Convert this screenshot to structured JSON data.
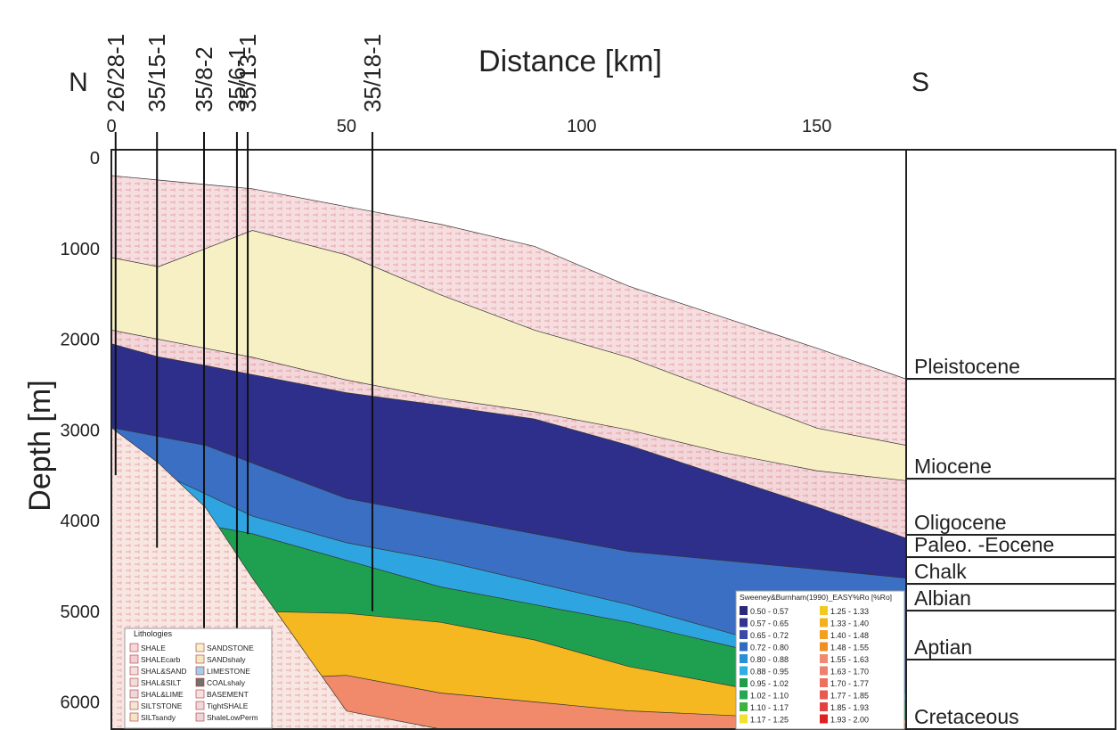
{
  "chart_data": {
    "type": "section",
    "title": "Distance [km]",
    "ylabel": "Depth [m]",
    "left_label": "N",
    "right_label": "S",
    "xlim": [
      0,
      169
    ],
    "xticks": [
      0,
      50,
      100,
      150
    ],
    "ylim": [
      6300,
      -90
    ],
    "yticks": [
      0,
      1000,
      2000,
      3000,
      4000,
      5000,
      6000
    ],
    "wells": [
      {
        "name": "26/28-1",
        "x": 0.9,
        "td": 3500
      },
      {
        "name": "35/15-1",
        "x": 9.7,
        "td": 4300
      },
      {
        "name": "35/8-2",
        "x": 19.7,
        "td": 5200
      },
      {
        "name": "35/6-1",
        "x": 26.7,
        "td": 5200
      },
      {
        "name": "35/13-1",
        "x": 29.0,
        "td": 4150
      },
      {
        "name": "35/18-1",
        "x": 55.5,
        "td": 5000
      }
    ],
    "layer_x": [
      0,
      10,
      20,
      30,
      50,
      70,
      90,
      110,
      130,
      150,
      169
    ],
    "layers": [
      {
        "color": "#f6dde0",
        "hatch": true,
        "top": [
          195,
          244,
          293,
          341,
          537,
          732,
          976,
          1415,
          1756,
          2098,
          2439
        ]
      },
      {
        "color": "#f7f0c4",
        "hatch": false,
        "top": [
          1100,
          1200,
          1000,
          800,
          1070,
          1510,
          1900,
          2200,
          2590,
          2980,
          3170
        ]
      },
      {
        "color": "#f3d6da",
        "hatch": true,
        "top": [
          1900,
          2000,
          2100,
          2200,
          2450,
          2650,
          2800,
          3000,
          3250,
          3450,
          3560
        ]
      },
      {
        "color": "#2e2f8a",
        "hatch": false,
        "top": [
          2050,
          2195,
          2290,
          2390,
          2590,
          2730,
          2880,
          3170,
          3510,
          3850,
          4195
        ]
      },
      {
        "color": "#3a6fc4",
        "hatch": false,
        "top": [
          2975,
          3073,
          3170,
          3366,
          3756,
          3951,
          4146,
          4341,
          4439,
          4537,
          4634
        ]
      },
      {
        "color": "#2ea5e0",
        "hatch": false,
        "top": [
          3268,
          3463,
          3707,
          3951,
          4244,
          4439,
          4683,
          4927,
          5220,
          5512,
          5902
        ]
      },
      {
        "color": "#1fa050",
        "hatch": false,
        "top": [
          3600,
          3800,
          4049,
          4146,
          4439,
          4732,
          4927,
          5122,
          5366,
          5610,
          6000
        ]
      },
      {
        "color": "#f5b820",
        "hatch": false,
        "top": [
          4500,
          4700,
          4900,
          5000,
          5024,
          5122,
          5317,
          5610,
          5805,
          6000,
          6195
        ]
      },
      {
        "color": "#f08a6a",
        "hatch": false,
        "top": [
          5500,
          5600,
          5700,
          5750,
          5707,
          5902,
          6000,
          6098,
          6146,
          6195,
          6250
        ]
      },
      {
        "color": "#f8e6e2",
        "hatch": true,
        "top": [
          2975,
          3366,
          3854,
          4634,
          6100,
          6300,
          6300,
          6300,
          6300,
          6300,
          6300
        ]
      }
    ],
    "stratigraphy": [
      {
        "name": "Pleistocene",
        "base": 2437
      },
      {
        "name": "Miocene",
        "base": 3538
      },
      {
        "name": "Oligocene",
        "base": 4157
      },
      {
        "name": "Paleo. -Eocene",
        "base": 4403
      },
      {
        "name": "Chalk",
        "base": 4698
      },
      {
        "name": "Albian",
        "base": 4993
      },
      {
        "name": "Aptian",
        "base": 5533
      },
      {
        "name": "Cretaceous",
        "base": 6300
      }
    ],
    "lithology_legend": {
      "title": "Lithologies",
      "items": [
        {
          "name": "SHALE",
          "color": "#f6d8dc"
        },
        {
          "name": "SHALEcarb",
          "color": "#f0d0d4"
        },
        {
          "name": "SHAL&SAND",
          "color": "#f4dede"
        },
        {
          "name": "SHAL&SILT",
          "color": "#f2dcdc"
        },
        {
          "name": "SHAL&LIME",
          "color": "#eed8dc"
        },
        {
          "name": "SILTSTONE",
          "color": "#f2e6d6"
        },
        {
          "name": "SILTsandy",
          "color": "#f4e4c8"
        },
        {
          "name": "SANDSTONE",
          "color": "#f8f0c8"
        },
        {
          "name": "SANDshaly",
          "color": "#f4e8c0"
        },
        {
          "name": "LIMESTONE",
          "color": "#9fd0e8"
        },
        {
          "name": "COALshaly",
          "color": "#707070"
        },
        {
          "name": "BASEMENT",
          "color": "#f6e0e0"
        },
        {
          "name": "TightSHALE",
          "color": "#f0d8dc"
        },
        {
          "name": "ShaleLowPerm",
          "color": "#ecd4d8"
        }
      ]
    },
    "ro_legend": {
      "title": "Sweeney&Burnham(1990)_EASY%Ro [%Ro]",
      "items": [
        {
          "label": "0.50 - 0.57",
          "color": "#2b2a7a"
        },
        {
          "label": "0.57 - 0.65",
          "color": "#32358f"
        },
        {
          "label": "0.65 - 0.72",
          "color": "#3a4aa6"
        },
        {
          "label": "0.72 - 0.80",
          "color": "#2f6bc0"
        },
        {
          "label": "0.80 - 0.88",
          "color": "#2790d6"
        },
        {
          "label": "0.88 - 0.95",
          "color": "#2eaee3"
        },
        {
          "label": "0.95 - 1.02",
          "color": "#1e9e4a"
        },
        {
          "label": "1.02 - 1.10",
          "color": "#25a850"
        },
        {
          "label": "1.10 - 1.17",
          "color": "#40b040"
        },
        {
          "label": "1.17 - 1.25",
          "color": "#f3e030"
        },
        {
          "label": "1.25 - 1.33",
          "color": "#f5c820"
        },
        {
          "label": "1.33 - 1.40",
          "color": "#f5b020"
        },
        {
          "label": "1.40 - 1.48",
          "color": "#f3a020"
        },
        {
          "label": "1.48 - 1.55",
          "color": "#f09020"
        },
        {
          "label": "1.55 - 1.63",
          "color": "#f08a70"
        },
        {
          "label": "1.63 - 1.70",
          "color": "#ee8070"
        },
        {
          "label": "1.70 - 1.77",
          "color": "#ec7060"
        },
        {
          "label": "1.77 - 1.85",
          "color": "#e85a50"
        },
        {
          "label": "1.85 - 1.93",
          "color": "#e54040"
        },
        {
          "label": "1.93 - 2.00",
          "color": "#e02020"
        }
      ]
    }
  }
}
